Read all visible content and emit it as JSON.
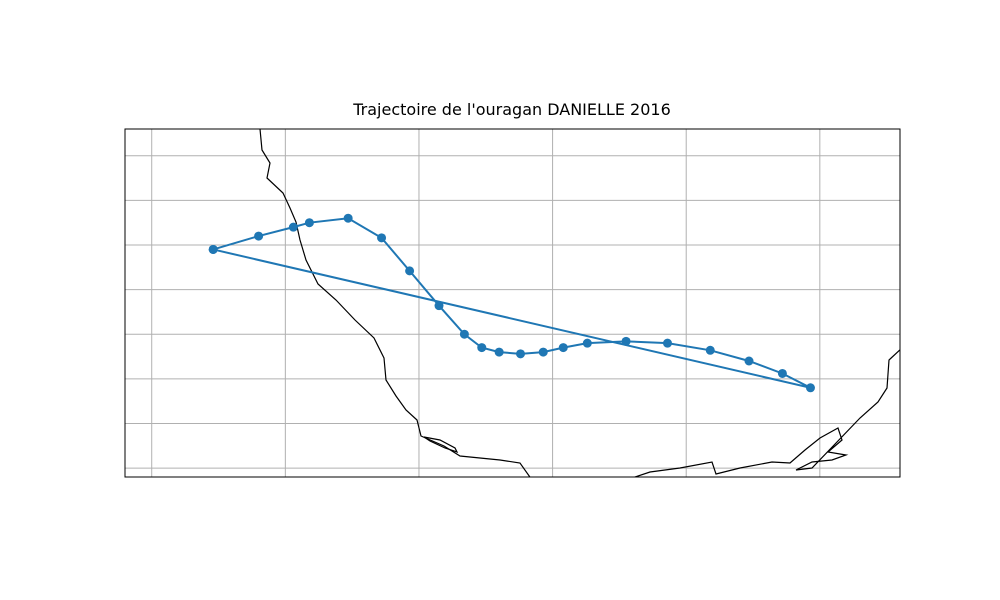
{
  "chart_data": {
    "type": "track",
    "title": "Trajectoire de l'ouragan DANIELLE 2016",
    "color": "#1f77b4",
    "grid": true,
    "xlim": [
      -99.2,
      -93.4
    ],
    "ylim": [
      19.9,
      23.8
    ],
    "xticks": [
      -99,
      -98,
      -97,
      -96,
      -95,
      -94
    ],
    "yticks": [
      20.0,
      20.5,
      21.0,
      21.5,
      22.0,
      22.5,
      23.0,
      23.5
    ],
    "x": [
      -98.54,
      -98.2,
      -97.94,
      -97.82,
      -97.53,
      -97.28,
      -97.07,
      -96.85,
      -96.66,
      -96.53,
      -96.4,
      -96.24,
      -96.07,
      -95.92,
      -95.74,
      -95.45,
      -95.14,
      -94.82,
      -94.53,
      -94.28,
      -94.07,
      -98.54
    ],
    "values": [
      22.45,
      22.6,
      22.7,
      22.75,
      22.8,
      22.58,
      22.21,
      21.82,
      21.5,
      21.35,
      21.3,
      21.28,
      21.3,
      21.35,
      21.4,
      21.42,
      21.4,
      21.32,
      21.2,
      21.06,
      20.9,
      22.45
    ]
  }
}
